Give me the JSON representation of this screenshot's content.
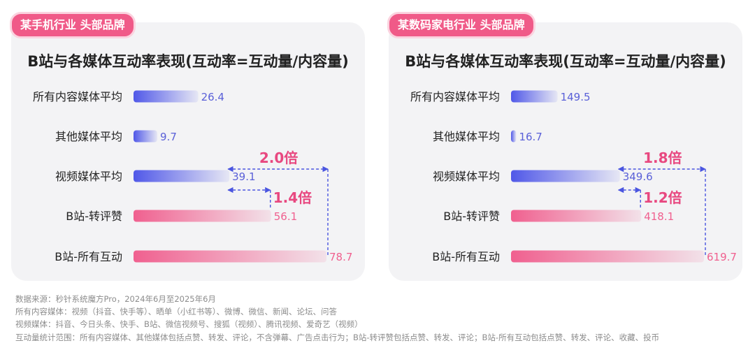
{
  "panels": [
    {
      "tag": "某手机行业 头部品牌",
      "title": "B站与各媒体互动率表现(互动率=互动量/内容量)"
    },
    {
      "tag": "某数码家电行业 头部品牌",
      "title": "B站与各媒体互动率表现(互动率=互动量/内容量)"
    }
  ],
  "colors": {
    "blue": "#5058e8",
    "pink": "#f0608f",
    "annotation_pink": "#e84880",
    "dashed": "#4a55e0",
    "tag": "#f05a88"
  },
  "chart_data": [
    {
      "type": "bar",
      "orientation": "horizontal",
      "title": "B站与各媒体互动率表现(互动率=互动量/内容量)",
      "categories": [
        "所有内容媒体平均",
        "其他媒体平均",
        "视频媒体平均",
        "B站-转评赞",
        "B站-所有互动"
      ],
      "values": [
        26.4,
        9.7,
        39.1,
        56.1,
        78.7
      ],
      "value_labels": [
        "26.4",
        "9.7",
        "39.1",
        "56.1",
        "78.7"
      ],
      "bar_colors": [
        "blue",
        "blue",
        "blue",
        "pink",
        "pink"
      ],
      "annotations": [
        {
          "label": "2.0倍",
          "from": "视频媒体平均",
          "to": "B站-所有互动"
        },
        {
          "label": "1.4倍",
          "from": "视频媒体平均",
          "to": "B站-转评赞"
        }
      ],
      "xlim": [
        0,
        78.7
      ]
    },
    {
      "type": "bar",
      "orientation": "horizontal",
      "title": "B站与各媒体互动率表现(互动率=互动量/内容量)",
      "categories": [
        "所有内容媒体平均",
        "其他媒体平均",
        "视频媒体平均",
        "B站-转评赞",
        "B站-所有互动"
      ],
      "values": [
        149.5,
        16.7,
        349.6,
        418.1,
        619.7
      ],
      "value_labels": [
        "149.5",
        "16.7",
        "349.6",
        "418.1",
        "619.7"
      ],
      "bar_colors": [
        "blue",
        "blue",
        "blue",
        "pink",
        "pink"
      ],
      "annotations": [
        {
          "label": "1.8倍",
          "from": "视频媒体平均",
          "to": "B站-所有互动"
        },
        {
          "label": "1.2倍",
          "from": "视频媒体平均",
          "to": "B站-转评赞"
        }
      ],
      "xlim": [
        0,
        619.7
      ]
    }
  ],
  "notes": [
    "数据来源：秒针系统魔方Pro，2024年6月至2025年6月",
    "所有内容媒体：视频（抖音、快手等）、晒单（小红书等）、微博、微信、新闻、论坛、问答",
    "视频媒体：抖音、今日头条、快手、B站、微信视频号、搜狐（视频）、腾讯视频、爱奇艺（视频）",
    "互动量统计范围：所有内容媒体、其他媒体包括点赞、转发、评论，不含弹幕、广告点击行为；B站-转评赞包括点赞、转发、评论；B站-所有互动包括点赞、转发、评论、收藏、投币"
  ]
}
